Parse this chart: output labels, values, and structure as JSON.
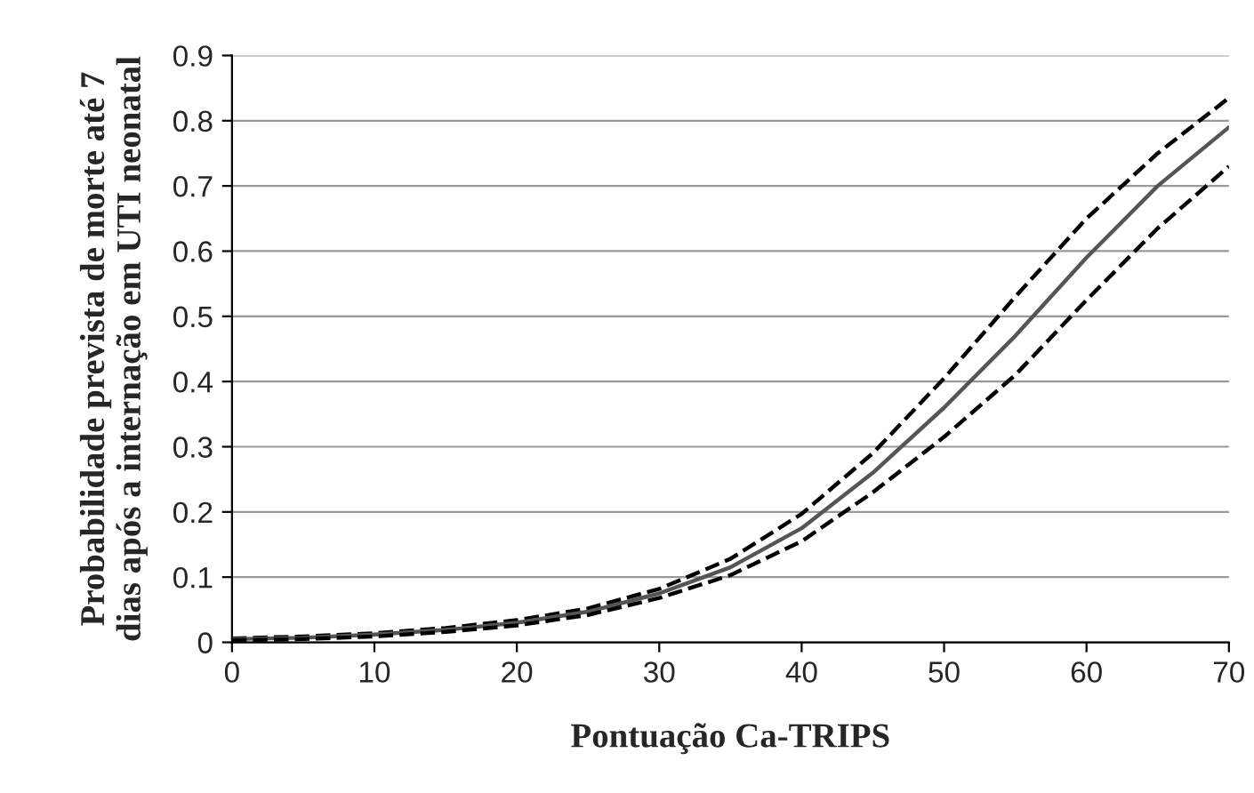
{
  "chart_data": {
    "type": "line",
    "xlabel": "Pontuação Ca-TRIPS",
    "ylabel": "Probabilidade prevista de morte até 7\ndias após a internação em UTI neonatal",
    "x": [
      0,
      5,
      10,
      15,
      20,
      25,
      30,
      35,
      40,
      45,
      50,
      55,
      60,
      65,
      70
    ],
    "series": [
      {
        "color": "#000000",
        "line_style": "dashed",
        "values": [
          0.006,
          0.009,
          0.014,
          0.022,
          0.034,
          0.052,
          0.082,
          0.128,
          0.197,
          0.29,
          0.405,
          0.53,
          0.65,
          0.75,
          0.835
        ]
      },
      {
        "color": "#555555",
        "line_style": "solid",
        "values": [
          0.005,
          0.007,
          0.012,
          0.019,
          0.03,
          0.047,
          0.075,
          0.115,
          0.175,
          0.26,
          0.36,
          0.47,
          0.59,
          0.7,
          0.79
        ]
      },
      {
        "color": "#000000",
        "line_style": "dashed",
        "values": [
          0.003,
          0.005,
          0.009,
          0.016,
          0.026,
          0.042,
          0.068,
          0.103,
          0.155,
          0.23,
          0.315,
          0.41,
          0.525,
          0.635,
          0.73
        ]
      }
    ],
    "xlim": [
      0,
      70
    ],
    "xticks": [
      0,
      10,
      20,
      30,
      40,
      50,
      60,
      70
    ],
    "ylim": [
      0,
      0.9
    ],
    "yticks": [
      0,
      0.1,
      0.2,
      0.3,
      0.4,
      0.5,
      0.6,
      0.7,
      0.8,
      0.9
    ],
    "grid": "y",
    "marker": "none"
  }
}
